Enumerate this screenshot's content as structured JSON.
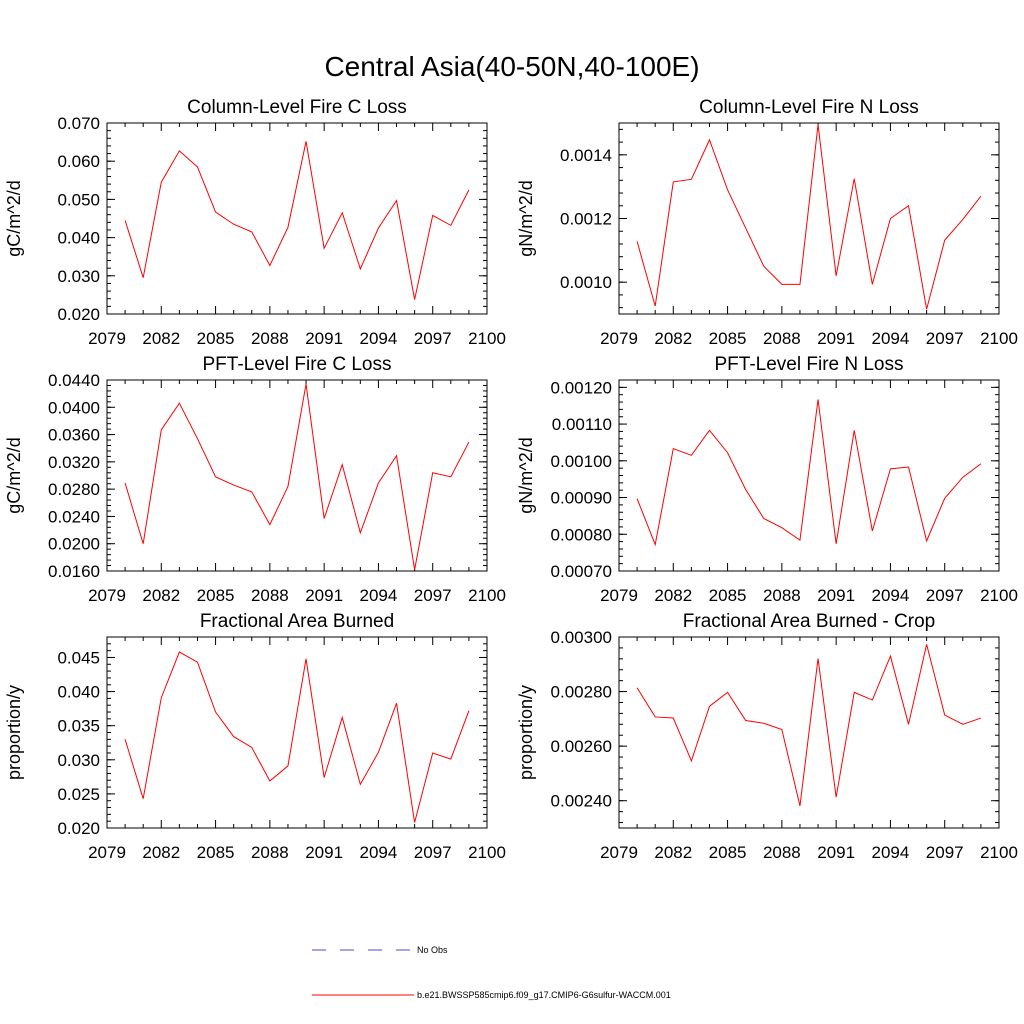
{
  "title": "Central Asia(40-50N,40-100E)",
  "colors": {
    "model": "#ff0000",
    "obs": "#4a4ad0",
    "axis": "#000000"
  },
  "legend": [
    {
      "label": "No Obs",
      "style": "dashed",
      "color": "#4a4ad0"
    },
    {
      "label": "b.e21.BWSSP585cmip6.f09_g17.CMIP6-G6sulfur-WACCM.001",
      "style": "solid",
      "color": "#ff0000"
    }
  ],
  "chart_data": [
    {
      "type": "line",
      "title": "Column-Level Fire C Loss",
      "ylabel": "gC/m^2/d",
      "xlim": [
        2079,
        2100
      ],
      "ylim": [
        0.02,
        0.07
      ],
      "xticks": [
        "2079",
        "2082",
        "2085",
        "2088",
        "2091",
        "2094",
        "2097",
        "2100"
      ],
      "yticks": [
        "0.020",
        "0.030",
        "0.040",
        "0.050",
        "0.060",
        "0.070"
      ],
      "x": [
        2080,
        2081,
        2082,
        2083,
        2084,
        2085,
        2086,
        2087,
        2088,
        2089,
        2090,
        2091,
        2092,
        2093,
        2094,
        2095,
        2096,
        2097,
        2098,
        2099
      ],
      "series": [
        {
          "name": "b.e21.BWSSP585cmip6.f09_g17.CMIP6-G6sulfur-WACCM.001",
          "values": [
            0.0445,
            0.0295,
            0.0545,
            0.0627,
            0.0585,
            0.0467,
            0.0435,
            0.0415,
            0.0327,
            0.0427,
            0.0652,
            0.0372,
            0.0465,
            0.0318,
            0.0425,
            0.0497,
            0.0238,
            0.0458,
            0.0432,
            0.0525
          ]
        }
      ]
    },
    {
      "type": "line",
      "title": "Column-Level Fire N Loss",
      "ylabel": "gN/m^2/d",
      "xlim": [
        2079,
        2100
      ],
      "ylim": [
        0.0009,
        0.0015
      ],
      "xticks": [
        "2079",
        "2082",
        "2085",
        "2088",
        "2091",
        "2094",
        "2097",
        "2100"
      ],
      "yticks": [
        "0.0010",
        "0.0012",
        "0.0014"
      ],
      "x": [
        2080,
        2081,
        2082,
        2083,
        2084,
        2085,
        2086,
        2087,
        2088,
        2089,
        2090,
        2091,
        2092,
        2093,
        2094,
        2095,
        2096,
        2097,
        2098,
        2099
      ],
      "series": [
        {
          "name": "b.e21.BWSSP585cmip6.f09_g17.CMIP6-G6sulfur-WACCM.001",
          "values": [
            0.001128,
            0.000925,
            0.001315,
            0.001323,
            0.001447,
            0.00129,
            0.00117,
            0.00105,
            0.000993,
            0.000993,
            0.001495,
            0.00102,
            0.001325,
            0.000993,
            0.0012,
            0.00124,
            0.000915,
            0.001132,
            0.001197,
            0.00127
          ]
        }
      ]
    },
    {
      "type": "line",
      "title": "PFT-Level Fire C Loss",
      "ylabel": "gC/m^2/d",
      "xlim": [
        2079,
        2100
      ],
      "ylim": [
        0.016,
        0.044
      ],
      "xticks": [
        "2079",
        "2082",
        "2085",
        "2088",
        "2091",
        "2094",
        "2097",
        "2100"
      ],
      "yticks": [
        "0.0160",
        "0.0200",
        "0.0240",
        "0.0280",
        "0.0320",
        "0.0360",
        "0.0400",
        "0.0440"
      ],
      "x": [
        2080,
        2081,
        2082,
        2083,
        2084,
        2085,
        2086,
        2087,
        2088,
        2089,
        2090,
        2091,
        2092,
        2093,
        2094,
        2095,
        2096,
        2097,
        2098,
        2099
      ],
      "series": [
        {
          "name": "b.e21.BWSSP585cmip6.f09_g17.CMIP6-G6sulfur-WACCM.001",
          "values": [
            0.0289,
            0.02,
            0.0367,
            0.0406,
            0.0354,
            0.0298,
            0.0286,
            0.0276,
            0.0228,
            0.0284,
            0.0434,
            0.0237,
            0.0316,
            0.0216,
            0.0289,
            0.0329,
            0.0162,
            0.0304,
            0.0298,
            0.0349
          ]
        }
      ]
    },
    {
      "type": "line",
      "title": "PFT-Level Fire N Loss",
      "ylabel": "gN/m^2/d",
      "xlim": [
        2079,
        2100
      ],
      "ylim": [
        0.0007,
        0.00122
      ],
      "xticks": [
        "2079",
        "2082",
        "2085",
        "2088",
        "2091",
        "2094",
        "2097",
        "2100"
      ],
      "yticks": [
        "0.00070",
        "0.00080",
        "0.00090",
        "0.00100",
        "0.00110",
        "0.00120"
      ],
      "x": [
        2080,
        2081,
        2082,
        2083,
        2084,
        2085,
        2086,
        2087,
        2088,
        2089,
        2090,
        2091,
        2092,
        2093,
        2094,
        2095,
        2096,
        2097,
        2098,
        2099
      ],
      "series": [
        {
          "name": "b.e21.BWSSP585cmip6.f09_g17.CMIP6-G6sulfur-WACCM.001",
          "values": [
            0.000897,
            0.000772,
            0.001033,
            0.001015,
            0.001083,
            0.001022,
            0.000922,
            0.000843,
            0.000818,
            0.000784,
            0.001167,
            0.000774,
            0.001083,
            0.000809,
            0.000978,
            0.000983,
            0.000782,
            0.000898,
            0.000955,
            0.000992
          ]
        }
      ]
    },
    {
      "type": "line",
      "title": "Fractional Area Burned",
      "ylabel": "proportion/y",
      "xlim": [
        2079,
        2100
      ],
      "ylim": [
        0.02,
        0.048
      ],
      "xticks": [
        "2079",
        "2082",
        "2085",
        "2088",
        "2091",
        "2094",
        "2097",
        "2100"
      ],
      "yticks": [
        "0.020",
        "0.025",
        "0.030",
        "0.035",
        "0.040",
        "0.045"
      ],
      "x": [
        2080,
        2081,
        2082,
        2083,
        2084,
        2085,
        2086,
        2087,
        2088,
        2089,
        2090,
        2091,
        2092,
        2093,
        2094,
        2095,
        2096,
        2097,
        2098,
        2099
      ],
      "series": [
        {
          "name": "b.e21.BWSSP585cmip6.f09_g17.CMIP6-G6sulfur-WACCM.001",
          "values": [
            0.033,
            0.0243,
            0.0391,
            0.0458,
            0.0443,
            0.037,
            0.0334,
            0.0318,
            0.0269,
            0.0291,
            0.0448,
            0.0274,
            0.0362,
            0.0264,
            0.0311,
            0.0383,
            0.0208,
            0.031,
            0.0301,
            0.0372
          ]
        }
      ]
    },
    {
      "type": "line",
      "title": "Fractional Area Burned - Crop",
      "ylabel": "proportion/y",
      "xlim": [
        2079,
        2100
      ],
      "ylim": [
        0.0023,
        0.003
      ],
      "xticks": [
        "2079",
        "2082",
        "2085",
        "2088",
        "2091",
        "2094",
        "2097",
        "2100"
      ],
      "yticks": [
        "0.00240",
        "0.00260",
        "0.00280",
        "0.00300"
      ],
      "x": [
        2080,
        2081,
        2082,
        2083,
        2084,
        2085,
        2086,
        2087,
        2088,
        2089,
        2090,
        2091,
        2092,
        2093,
        2094,
        2095,
        2096,
        2097,
        2098,
        2099
      ],
      "series": [
        {
          "name": "b.e21.BWSSP585cmip6.f09_g17.CMIP6-G6sulfur-WACCM.001",
          "values": [
            0.002814,
            0.002707,
            0.002703,
            0.002546,
            0.002746,
            0.002797,
            0.002694,
            0.002684,
            0.002661,
            0.002381,
            0.002921,
            0.002413,
            0.002797,
            0.002769,
            0.00293,
            0.00268,
            0.002973,
            0.002714,
            0.00268,
            0.002703
          ]
        }
      ]
    }
  ]
}
